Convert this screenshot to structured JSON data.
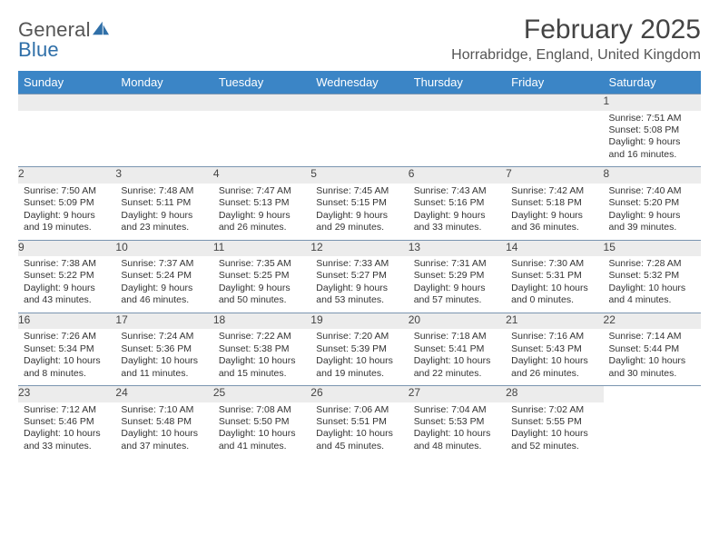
{
  "logo": {
    "word1": "General",
    "word2": "Blue"
  },
  "title": "February 2025",
  "location": "Horrabridge, England, United Kingdom",
  "colors": {
    "header_bg": "#3b85c6",
    "header_text": "#ffffff",
    "row_divider": "#7a95b0",
    "daynum_bg": "#ececec",
    "logo_blue": "#2f6fa8",
    "text": "#333333",
    "title_text": "#444444"
  },
  "fonts": {
    "title_size_pt": 22,
    "location_size_pt": 12,
    "dayhead_size_pt": 10,
    "cell_size_pt": 8
  },
  "day_names": [
    "Sunday",
    "Monday",
    "Tuesday",
    "Wednesday",
    "Thursday",
    "Friday",
    "Saturday"
  ],
  "weeks": [
    [
      null,
      null,
      null,
      null,
      null,
      null,
      {
        "n": "1",
        "sr": "Sunrise: 7:51 AM",
        "ss": "Sunset: 5:08 PM",
        "d1": "Daylight: 9 hours",
        "d2": "and 16 minutes."
      }
    ],
    [
      {
        "n": "2",
        "sr": "Sunrise: 7:50 AM",
        "ss": "Sunset: 5:09 PM",
        "d1": "Daylight: 9 hours",
        "d2": "and 19 minutes."
      },
      {
        "n": "3",
        "sr": "Sunrise: 7:48 AM",
        "ss": "Sunset: 5:11 PM",
        "d1": "Daylight: 9 hours",
        "d2": "and 23 minutes."
      },
      {
        "n": "4",
        "sr": "Sunrise: 7:47 AM",
        "ss": "Sunset: 5:13 PM",
        "d1": "Daylight: 9 hours",
        "d2": "and 26 minutes."
      },
      {
        "n": "5",
        "sr": "Sunrise: 7:45 AM",
        "ss": "Sunset: 5:15 PM",
        "d1": "Daylight: 9 hours",
        "d2": "and 29 minutes."
      },
      {
        "n": "6",
        "sr": "Sunrise: 7:43 AM",
        "ss": "Sunset: 5:16 PM",
        "d1": "Daylight: 9 hours",
        "d2": "and 33 minutes."
      },
      {
        "n": "7",
        "sr": "Sunrise: 7:42 AM",
        "ss": "Sunset: 5:18 PM",
        "d1": "Daylight: 9 hours",
        "d2": "and 36 minutes."
      },
      {
        "n": "8",
        "sr": "Sunrise: 7:40 AM",
        "ss": "Sunset: 5:20 PM",
        "d1": "Daylight: 9 hours",
        "d2": "and 39 minutes."
      }
    ],
    [
      {
        "n": "9",
        "sr": "Sunrise: 7:38 AM",
        "ss": "Sunset: 5:22 PM",
        "d1": "Daylight: 9 hours",
        "d2": "and 43 minutes."
      },
      {
        "n": "10",
        "sr": "Sunrise: 7:37 AM",
        "ss": "Sunset: 5:24 PM",
        "d1": "Daylight: 9 hours",
        "d2": "and 46 minutes."
      },
      {
        "n": "11",
        "sr": "Sunrise: 7:35 AM",
        "ss": "Sunset: 5:25 PM",
        "d1": "Daylight: 9 hours",
        "d2": "and 50 minutes."
      },
      {
        "n": "12",
        "sr": "Sunrise: 7:33 AM",
        "ss": "Sunset: 5:27 PM",
        "d1": "Daylight: 9 hours",
        "d2": "and 53 minutes."
      },
      {
        "n": "13",
        "sr": "Sunrise: 7:31 AM",
        "ss": "Sunset: 5:29 PM",
        "d1": "Daylight: 9 hours",
        "d2": "and 57 minutes."
      },
      {
        "n": "14",
        "sr": "Sunrise: 7:30 AM",
        "ss": "Sunset: 5:31 PM",
        "d1": "Daylight: 10 hours",
        "d2": "and 0 minutes."
      },
      {
        "n": "15",
        "sr": "Sunrise: 7:28 AM",
        "ss": "Sunset: 5:32 PM",
        "d1": "Daylight: 10 hours",
        "d2": "and 4 minutes."
      }
    ],
    [
      {
        "n": "16",
        "sr": "Sunrise: 7:26 AM",
        "ss": "Sunset: 5:34 PM",
        "d1": "Daylight: 10 hours",
        "d2": "and 8 minutes."
      },
      {
        "n": "17",
        "sr": "Sunrise: 7:24 AM",
        "ss": "Sunset: 5:36 PM",
        "d1": "Daylight: 10 hours",
        "d2": "and 11 minutes."
      },
      {
        "n": "18",
        "sr": "Sunrise: 7:22 AM",
        "ss": "Sunset: 5:38 PM",
        "d1": "Daylight: 10 hours",
        "d2": "and 15 minutes."
      },
      {
        "n": "19",
        "sr": "Sunrise: 7:20 AM",
        "ss": "Sunset: 5:39 PM",
        "d1": "Daylight: 10 hours",
        "d2": "and 19 minutes."
      },
      {
        "n": "20",
        "sr": "Sunrise: 7:18 AM",
        "ss": "Sunset: 5:41 PM",
        "d1": "Daylight: 10 hours",
        "d2": "and 22 minutes."
      },
      {
        "n": "21",
        "sr": "Sunrise: 7:16 AM",
        "ss": "Sunset: 5:43 PM",
        "d1": "Daylight: 10 hours",
        "d2": "and 26 minutes."
      },
      {
        "n": "22",
        "sr": "Sunrise: 7:14 AM",
        "ss": "Sunset: 5:44 PM",
        "d1": "Daylight: 10 hours",
        "d2": "and 30 minutes."
      }
    ],
    [
      {
        "n": "23",
        "sr": "Sunrise: 7:12 AM",
        "ss": "Sunset: 5:46 PM",
        "d1": "Daylight: 10 hours",
        "d2": "and 33 minutes."
      },
      {
        "n": "24",
        "sr": "Sunrise: 7:10 AM",
        "ss": "Sunset: 5:48 PM",
        "d1": "Daylight: 10 hours",
        "d2": "and 37 minutes."
      },
      {
        "n": "25",
        "sr": "Sunrise: 7:08 AM",
        "ss": "Sunset: 5:50 PM",
        "d1": "Daylight: 10 hours",
        "d2": "and 41 minutes."
      },
      {
        "n": "26",
        "sr": "Sunrise: 7:06 AM",
        "ss": "Sunset: 5:51 PM",
        "d1": "Daylight: 10 hours",
        "d2": "and 45 minutes."
      },
      {
        "n": "27",
        "sr": "Sunrise: 7:04 AM",
        "ss": "Sunset: 5:53 PM",
        "d1": "Daylight: 10 hours",
        "d2": "and 48 minutes."
      },
      {
        "n": "28",
        "sr": "Sunrise: 7:02 AM",
        "ss": "Sunset: 5:55 PM",
        "d1": "Daylight: 10 hours",
        "d2": "and 52 minutes."
      },
      null
    ]
  ]
}
